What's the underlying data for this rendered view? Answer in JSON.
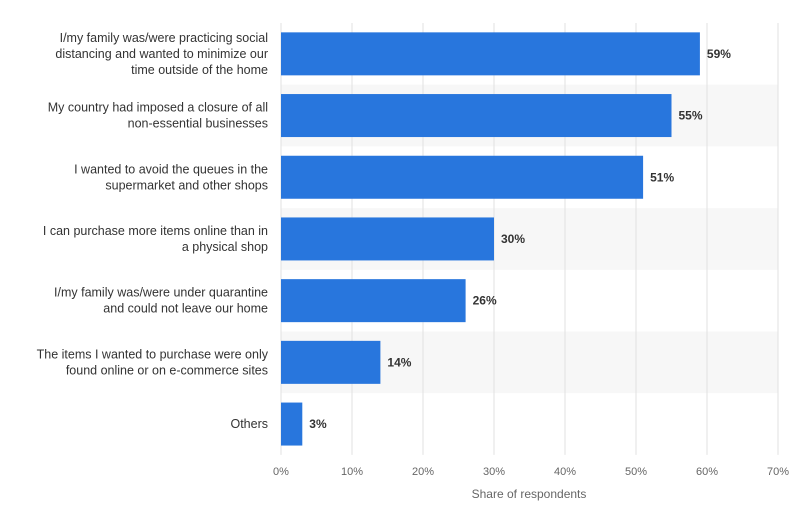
{
  "chart_data": {
    "type": "bar",
    "orientation": "horizontal",
    "categories": [
      [
        "I/my family was/were practicing social",
        "distancing and wanted to minimize our",
        "time outside of the home"
      ],
      [
        "My country had imposed a closure of all",
        "non-essential businesses"
      ],
      [
        "I wanted to avoid the queues in the",
        "supermarket and other shops"
      ],
      [
        "I can purchase more items online than in",
        "a physical shop"
      ],
      [
        "I/my family was/were under quarantine",
        "and could not leave our home"
      ],
      [
        "The items I wanted to purchase were only",
        "found online or on e-commerce sites"
      ],
      [
        "Others"
      ]
    ],
    "values": [
      59,
      55,
      51,
      30,
      26,
      14,
      3
    ],
    "data_labels": [
      "59%",
      "55%",
      "51%",
      "30%",
      "26%",
      "14%",
      "3%"
    ],
    "xlabel": "Share of respondents",
    "xlim": [
      0,
      70
    ],
    "xticks": [
      0,
      10,
      20,
      30,
      40,
      50,
      60,
      70
    ],
    "xtick_labels": [
      "0%",
      "10%",
      "20%",
      "30%",
      "40%",
      "50%",
      "60%",
      "70%"
    ],
    "grid": true,
    "bar_color": "#2876dd",
    "band_color": "#f7f7f7"
  }
}
